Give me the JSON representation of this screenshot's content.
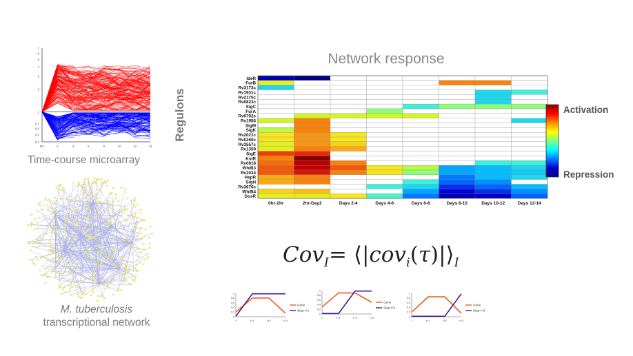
{
  "captions": {
    "microarray": "Time-course microarray",
    "network_italic": "M. tuberculosis",
    "network": "transcriptional network"
  },
  "heatmap": {
    "title": "Network response",
    "ylabel": "Regulons",
    "legend_high": "Activation",
    "legend_low": "Repression",
    "colorbar": [
      "#8b0000",
      "#ff0000",
      "#ff8c00",
      "#ffff00",
      "#7fff7f",
      "#00ffff",
      "#0080ff",
      "#0000cd",
      "#000080"
    ]
  },
  "formula": {
    "text": "Cov"
  },
  "chart_data": [
    {
      "type": "heatmap",
      "title": "Network response",
      "ylabel": "Regulons",
      "columns": [
        "0hr-2hr",
        "2hr-Day2",
        "Days 2-4",
        "Days 4-6",
        "Days 6-8",
        "Days 8-10",
        "Days 10-12",
        "Days 12-14"
      ],
      "rows": [
        "IdeR",
        "FurB",
        "Rv3173c",
        "Rv1931c",
        "Rv2175c",
        "Rv0823c",
        "SigC",
        "FurA",
        "Rv0792c",
        "Rv1956",
        "SigM",
        "SigK",
        "Rv2021c",
        "Rv0260c",
        "Rv3557c",
        "Rv1359",
        "SigE",
        "KstR",
        "Rv0818",
        "WhiB3",
        "Rv2034",
        "HspR",
        "SigH",
        "Rv3676c",
        "WhiB4",
        "DosR"
      ],
      "values": [
        [
          -0.9,
          -1.0,
          0,
          0,
          0,
          0,
          0,
          0
        ],
        [
          0.3,
          0,
          0,
          0,
          0,
          0.6,
          0.6,
          0
        ],
        [
          -0.3,
          0,
          0,
          0,
          0,
          0,
          0,
          0
        ],
        [
          0,
          0,
          0,
          0,
          0,
          0,
          -0.3,
          -0.2
        ],
        [
          0,
          0,
          0,
          0,
          0,
          0,
          -0.3,
          0
        ],
        [
          0,
          0,
          0,
          0,
          0,
          0,
          -0.3,
          0
        ],
        [
          0,
          0,
          0,
          0,
          -0.2,
          0.1,
          0.1,
          0.1
        ],
        [
          0,
          0,
          0,
          0.1,
          0,
          0,
          0,
          0
        ],
        [
          0,
          0.25,
          0.25,
          0.25,
          0.25,
          0,
          0,
          0
        ],
        [
          0.25,
          0.6,
          0,
          0,
          0,
          0,
          0,
          -0.3
        ],
        [
          0,
          0.6,
          0,
          0,
          0,
          0,
          0,
          0
        ],
        [
          0.2,
          0.6,
          0,
          0,
          0,
          0,
          0,
          0
        ],
        [
          0.35,
          0.55,
          0.35,
          0,
          0,
          0,
          0,
          0
        ],
        [
          0.35,
          0.55,
          0.35,
          0,
          0,
          0,
          0,
          0
        ],
        [
          0.3,
          0.55,
          0.4,
          0,
          0,
          0,
          0,
          0
        ],
        [
          0.3,
          0.6,
          0.5,
          0,
          0,
          0,
          0,
          0
        ],
        [
          0.75,
          0.8,
          0,
          0,
          0,
          0,
          0,
          0
        ],
        [
          0.6,
          1.0,
          0,
          0,
          0,
          0,
          0,
          0
        ],
        [
          0.65,
          0.9,
          0.6,
          0,
          0,
          0,
          -0.2,
          -0.2
        ],
        [
          0.7,
          0.9,
          0.7,
          0.35,
          0.2,
          -0.45,
          -0.4,
          -0.3
        ],
        [
          0.7,
          0.85,
          0.6,
          0.35,
          0.1,
          -0.45,
          -0.4,
          -0.35
        ],
        [
          0.5,
          0.6,
          0,
          0,
          0,
          -0.55,
          -0.4,
          -0.3
        ],
        [
          0.5,
          0.6,
          0,
          0,
          -0.2,
          -0.6,
          -0.5,
          0
        ],
        [
          0,
          0,
          0,
          -0.2,
          -0.3,
          -0.7,
          -0.6,
          -0.4
        ],
        [
          0.4,
          0.45,
          0,
          0,
          -0.45,
          -0.8,
          -0.7,
          -0.5
        ],
        [
          0.3,
          0.3,
          0.35,
          -0.15,
          -0.55,
          -0.9,
          -0.85,
          -0.6
        ]
      ]
    },
    {
      "type": "line",
      "categories": [
        "t",
        "t+1",
        "t+2",
        "t+3"
      ],
      "ylim": [
        0,
        1
      ],
      "series": [
        {
          "name": "Gene",
          "values": [
            0.2,
            0.8,
            0.8,
            0.15
          ],
          "color": "#f05a1e"
        },
        {
          "name": "Step t+1",
          "values": [
            0.02,
            0.98,
            0.98,
            0.98
          ],
          "color": "#3c1a8a"
        }
      ]
    },
    {
      "type": "line",
      "categories": [
        "t",
        "t+1",
        "t+2",
        "t+3"
      ],
      "ylim": [
        0,
        1
      ],
      "series": [
        {
          "name": "Gene",
          "values": [
            0.3,
            0.9,
            0.9,
            0.5
          ],
          "color": "#f05a1e"
        },
        {
          "name": "Step t+2",
          "values": [
            0.02,
            0.02,
            0.98,
            0.98
          ],
          "color": "#3c1a8a"
        }
      ]
    },
    {
      "type": "line",
      "categories": [
        "t",
        "t+1",
        "t+2",
        "t+3"
      ],
      "ylim": [
        0,
        1
      ],
      "series": [
        {
          "name": "Gene",
          "values": [
            0.2,
            0.85,
            0.85,
            0.15
          ],
          "color": "#f05a1e"
        },
        {
          "name": "Step t+3",
          "values": [
            0.02,
            0.02,
            0.02,
            0.98
          ],
          "color": "#3c1a8a"
        }
      ]
    },
    {
      "type": "line",
      "categories": [
        "0hr",
        "2",
        "4",
        "6",
        "8",
        "10",
        "12",
        "14"
      ],
      "ylim": [
        0.4,
        7
      ],
      "log_scale": true,
      "yticks": [
        "7",
        "6",
        "5",
        "4",
        "3",
        "2",
        "1",
        "0.7",
        "0.6",
        "0.5",
        "0.4"
      ]
    }
  ]
}
